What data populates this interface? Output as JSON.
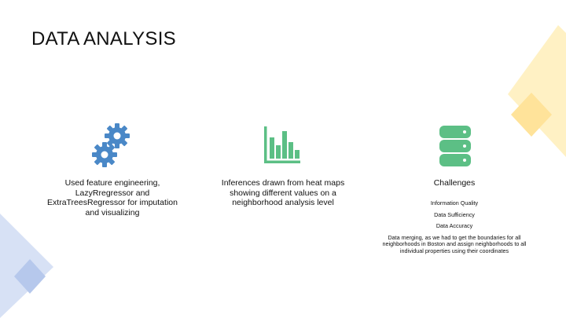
{
  "slide": {
    "title": "DATA ANALYSIS"
  },
  "columns": [
    {
      "icon": "gears-icon",
      "text": "Used feature engineering, LazyRregressor and ExtraTreesRegressor for imputation and visualizing"
    },
    {
      "icon": "bar-chart-icon",
      "text": "Inferences drawn from heat maps showing different values on a neighborhood analysis level"
    },
    {
      "icon": "database-icon",
      "heading": "Challenges",
      "items": [
        "Information Quality",
        "Data Sufficiency",
        "Data Accuracy",
        "Data merging, as we had to get the boundaries for all neighborhoods in Boston and assign neighborhoods to all individual properties using their coordinates"
      ]
    }
  ],
  "colors": {
    "icon_blue": "#4a88c7",
    "icon_green": "#5cbf85",
    "deco_yellow": "#ffe9a6",
    "deco_blue": "#c9d7f1"
  }
}
